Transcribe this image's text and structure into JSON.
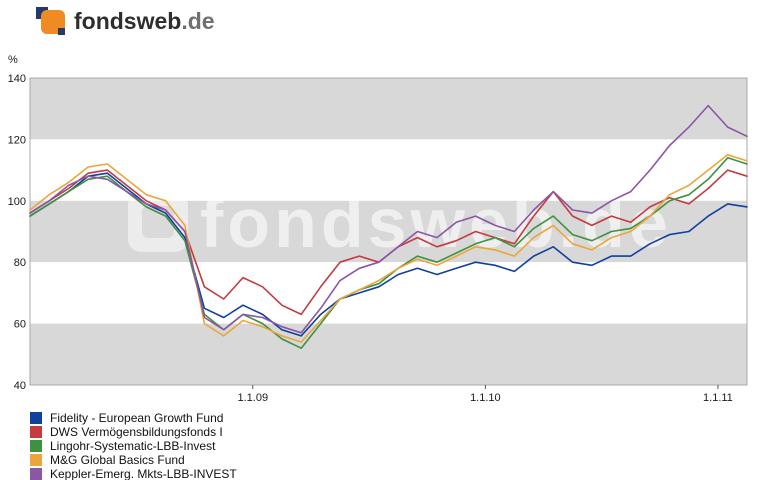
{
  "logo": {
    "part_bold": "fonds",
    "part_mid": "web",
    "part_suffix": ".de"
  },
  "colors": {
    "logo_orange": "#ef8b22",
    "logo_navy": "#253a6b",
    "band_gray": "#d8d8d8"
  },
  "chart_data": {
    "type": "line",
    "unit_label": "%",
    "watermark": "fondsweb.de",
    "ylim": [
      40,
      140
    ],
    "y_ticks": [
      140,
      120,
      100,
      80,
      60,
      40
    ],
    "x_format": "decimal_year",
    "x_range": [
      2008.042,
      2011.125
    ],
    "x_tick_positions": [
      2009.0,
      2010.0,
      2011.0
    ],
    "x_tick_labels": [
      "1.1.09",
      "1.1.10",
      "1.1.11"
    ],
    "band_colors": [
      "#d8d8d8",
      "#ffffff"
    ],
    "grid": "horizontal-bands",
    "legend_position": "bottom-left",
    "x": [
      2008.042,
      2008.125,
      2008.208,
      2008.292,
      2008.375,
      2008.458,
      2008.542,
      2008.625,
      2008.708,
      2008.792,
      2008.875,
      2008.958,
      2009.042,
      2009.125,
      2009.208,
      2009.292,
      2009.375,
      2009.458,
      2009.542,
      2009.625,
      2009.708,
      2009.792,
      2009.875,
      2009.958,
      2010.042,
      2010.125,
      2010.208,
      2010.292,
      2010.375,
      2010.458,
      2010.542,
      2010.625,
      2010.708,
      2010.792,
      2010.875,
      2010.958,
      2011.042,
      2011.125
    ],
    "series": [
      {
        "name": "Fidelity - European Growth Fund",
        "color": "#10409e",
        "values": [
          95,
          99,
          103,
          108,
          109,
          104,
          99,
          96,
          88,
          65,
          62,
          66,
          63,
          58,
          56,
          63,
          68,
          70,
          72,
          76,
          78,
          76,
          78,
          80,
          79,
          77,
          82,
          85,
          80,
          79,
          82,
          82,
          86,
          89,
          90,
          95,
          99,
          98
        ]
      },
      {
        "name": "DWS Vermögensbildungsfonds I",
        "color": "#c43b3f",
        "values": [
          96,
          100,
          104,
          109,
          110,
          105,
          100,
          97,
          90,
          72,
          68,
          75,
          72,
          66,
          63,
          72,
          80,
          82,
          80,
          85,
          88,
          85,
          87,
          90,
          88,
          86,
          95,
          103,
          95,
          92,
          95,
          93,
          98,
          101,
          99,
          104,
          110,
          108
        ]
      },
      {
        "name": "Lingohr-Systematic-LBB-Invest",
        "color": "#3f9142",
        "values": [
          95,
          99,
          103,
          107,
          108,
          103,
          98,
          95,
          87,
          63,
          58,
          63,
          60,
          55,
          52,
          60,
          68,
          71,
          73,
          78,
          82,
          80,
          83,
          86,
          88,
          85,
          91,
          95,
          89,
          87,
          90,
          91,
          95,
          100,
          102,
          107,
          114,
          112
        ]
      },
      {
        "name": "M&G Global Basics Fund",
        "color": "#e9a63b",
        "values": [
          97,
          102,
          106,
          111,
          112,
          107,
          102,
          100,
          92,
          60,
          56,
          61,
          59,
          56,
          54,
          61,
          68,
          71,
          74,
          78,
          81,
          79,
          82,
          85,
          84,
          82,
          88,
          92,
          86,
          84,
          88,
          90,
          95,
          102,
          105,
          110,
          115,
          113
        ]
      },
      {
        "name": "Keppler-Emerg. Mkts-LBB-INVEST",
        "color": "#8a56a6",
        "values": [
          96,
          100,
          105,
          108,
          107,
          103,
          99,
          97,
          90,
          62,
          58,
          63,
          62,
          59,
          57,
          65,
          74,
          78,
          80,
          85,
          90,
          88,
          93,
          95,
          92,
          90,
          97,
          103,
          97,
          96,
          100,
          103,
          110,
          118,
          124,
          131,
          124,
          121
        ]
      }
    ]
  }
}
